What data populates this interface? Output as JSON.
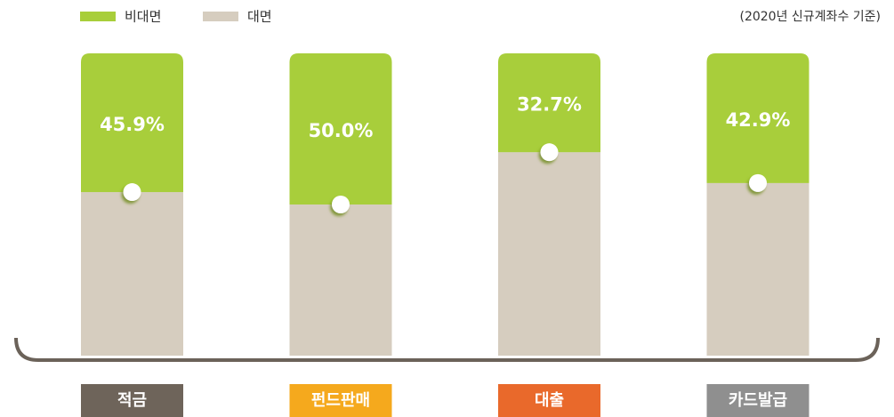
{
  "chart_data": {
    "type": "stacked_bar",
    "note": "(2020년 신규계좌수 기준)",
    "categories": [
      "적금",
      "펀드판매",
      "대출",
      "카드발급"
    ],
    "category_colors": [
      "#6e645a",
      "#f5a91d",
      "#e9692b",
      "#8f8f8f"
    ],
    "series": [
      {
        "name": "대면",
        "color": "#d6cdbf",
        "values": [
          54.1,
          50.0,
          67.3,
          57.1
        ]
      },
      {
        "name": "비대면",
        "color": "#a8ce3a",
        "values": [
          45.9,
          50.0,
          32.7,
          42.9
        ],
        "value_labels": [
          "45.9%",
          "50.0%",
          "32.7%",
          "42.9%"
        ]
      }
    ],
    "ylim": [
      0,
      100
    ]
  }
}
